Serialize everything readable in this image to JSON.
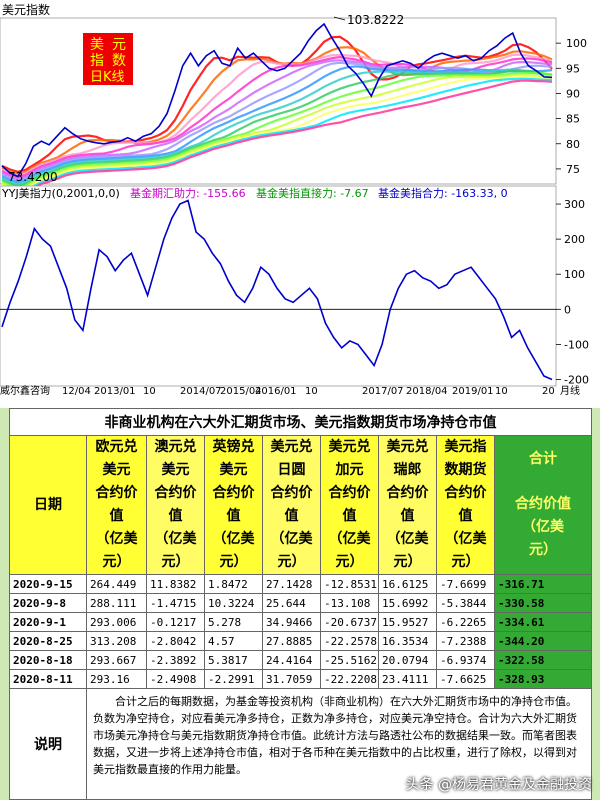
{
  "chart_data": [
    {
      "type": "line",
      "panel": "dollar-index",
      "title": "美元指数",
      "badge": [
        "美",
        "元",
        "指",
        "数",
        "日K线"
      ],
      "y_ticks": [
        "100",
        "95",
        "90",
        "85",
        "80",
        "75"
      ],
      "ylim": [
        72,
        105
      ],
      "max_label": "103.8222",
      "min_label": "73.4200",
      "series": [
        {
          "values": [
            75.6,
            74.2,
            73.5,
            76.0,
            79.5,
            80.5,
            79.8,
            81.5,
            83.2,
            82.0,
            81.0,
            80.5,
            80.2,
            80.0,
            80.3,
            80.5,
            81.2,
            80.5,
            81.5,
            82.0,
            83.5,
            86.0,
            90.5,
            95.5,
            98.0,
            95.5,
            97.5,
            98.5,
            96.0,
            95.5,
            99.0,
            97.0,
            98.0,
            96.5,
            95.0,
            94.5,
            95.0,
            96.5,
            98.0,
            100.5,
            102.5,
            103.8,
            101.0,
            98.5,
            95.5,
            94.0,
            92.0,
            89.5,
            93.0,
            95.5,
            96.0,
            96.5,
            96.0,
            95.0,
            96.5,
            97.5,
            98.0,
            97.5,
            97.0,
            97.5,
            96.5,
            97.0,
            98.5,
            99.5,
            101.0,
            102.0,
            98.0,
            95.5,
            94.5,
            93.3,
            93.2
          ]
        }
      ]
    },
    {
      "type": "line",
      "panel": "indicator",
      "title": "YYJ美指力(0,2001,0,0)",
      "legend": [
        {
          "label": "基金期汇助力: -155.66",
          "color": "#cc00cc"
        },
        {
          "label": "基金美指直接力: -7.67",
          "color": "#009900"
        },
        {
          "label": "基金美指合力: -163.33, 0",
          "color": "#0000cc"
        }
      ],
      "y_ticks": [
        "300",
        "200",
        "100",
        "0",
        "-100",
        "-200"
      ],
      "ylim": [
        -210,
        340
      ],
      "x_ticks": [
        "威尔鑫咨询",
        "12/04",
        "2013/01",
        "10",
        "2014/07",
        "2015/04",
        "2016/01",
        "10",
        "2017/07",
        "2018/04",
        "2019/01",
        "10",
        "20",
        "月线"
      ],
      "series": [
        {
          "values": [
            -50,
            20,
            80,
            150,
            230,
            200,
            180,
            120,
            60,
            -30,
            -60,
            60,
            170,
            150,
            110,
            140,
            160,
            100,
            40,
            120,
            200,
            260,
            300,
            310,
            220,
            200,
            160,
            130,
            80,
            40,
            20,
            60,
            120,
            100,
            60,
            30,
            20,
            40,
            60,
            30,
            -40,
            -80,
            -110,
            -90,
            -100,
            -130,
            -160,
            -100,
            0,
            60,
            100,
            110,
            90,
            80,
            60,
            70,
            100,
            110,
            120,
            90,
            60,
            30,
            -20,
            -80,
            -60,
            -110,
            -150,
            -190,
            -200
          ]
        }
      ]
    }
  ],
  "table": {
    "title": "非商业机构在六大外汇期货市场、美元指数期货市场净持仓市值",
    "date_header": "日期",
    "columns": [
      [
        "欧元兑",
        "美元",
        "合约价",
        "值",
        "（亿美",
        "元）"
      ],
      [
        "澳元兑",
        "美元",
        "合约价",
        "值",
        "（亿美",
        "元）"
      ],
      [
        "英镑兑",
        "美元",
        "合约价",
        "值",
        "（亿美",
        "元）"
      ],
      [
        "美元兑",
        "日圆",
        "合约价",
        "值",
        "（亿美",
        "元）"
      ],
      [
        "美元兑",
        "加元",
        "合约价",
        "值",
        "（亿美",
        "元）"
      ],
      [
        "美元兑",
        "瑞郎",
        "合约价",
        "值",
        "（亿美",
        "元）"
      ],
      [
        "美元指",
        "数期货",
        "合约价",
        "值",
        "（亿美",
        "元）"
      ]
    ],
    "sum_header": [
      "合计",
      "合约价值",
      "（亿美",
      "元）"
    ],
    "rows": [
      {
        "date": "2020-9-15",
        "v": [
          "264.449",
          "11.8382",
          "1.8472",
          "27.1428",
          "-12.8531",
          "16.6125",
          "-7.6699"
        ],
        "sum": "-316.71"
      },
      {
        "date": "2020-9-8",
        "v": [
          "288.111",
          "-1.4715",
          "10.3224",
          "25.644",
          "-13.108",
          "15.6992",
          "-5.3844"
        ],
        "sum": "-330.58"
      },
      {
        "date": "2020-9-1",
        "v": [
          "293.006",
          "-0.1217",
          "5.278",
          "34.9466",
          "-20.6737",
          "15.9527",
          "-6.2265"
        ],
        "sum": "-334.61"
      },
      {
        "date": "2020-8-25",
        "v": [
          "313.208",
          "-2.8042",
          "4.57",
          "27.8885",
          "-22.2578",
          "16.3534",
          "-7.2388"
        ],
        "sum": "-344.20"
      },
      {
        "date": "2020-8-18",
        "v": [
          "293.667",
          "-2.3892",
          "5.3817",
          "24.4164",
          "-25.5162",
          "20.0794",
          "-6.9374"
        ],
        "sum": "-322.58"
      },
      {
        "date": "2020-8-11",
        "v": [
          "293.16",
          "-2.4908",
          "-2.2991",
          "31.7059",
          "-22.2208",
          "23.4111",
          "-7.6625"
        ],
        "sum": "-328.93"
      }
    ],
    "note_label": "说明",
    "note": "合计之后的每期数据，为基金等投资机构（非商业机构）在六大外汇期货市场中的净持仓市值。负数为净空持仓，对应看美元净多持仓，正数为净多持仓，对应美元净空持仓。合计为六大外汇期货市场美元净持仓与美元指数期货净持仓市值。此统计方法与路透社公布的数据结果一致。而笔者图表数据，又进一步将上述净持仓市值，相对于各币种在美元指数中的占比权重，进行了除权，以得到对美元指数最直接的作用力能量。"
  },
  "watermark": "头条 @杨易君黄金及金融投资",
  "colors": {
    "accent": "#33aa33",
    "header": "#ffff33",
    "badge": "#ee0000"
  }
}
